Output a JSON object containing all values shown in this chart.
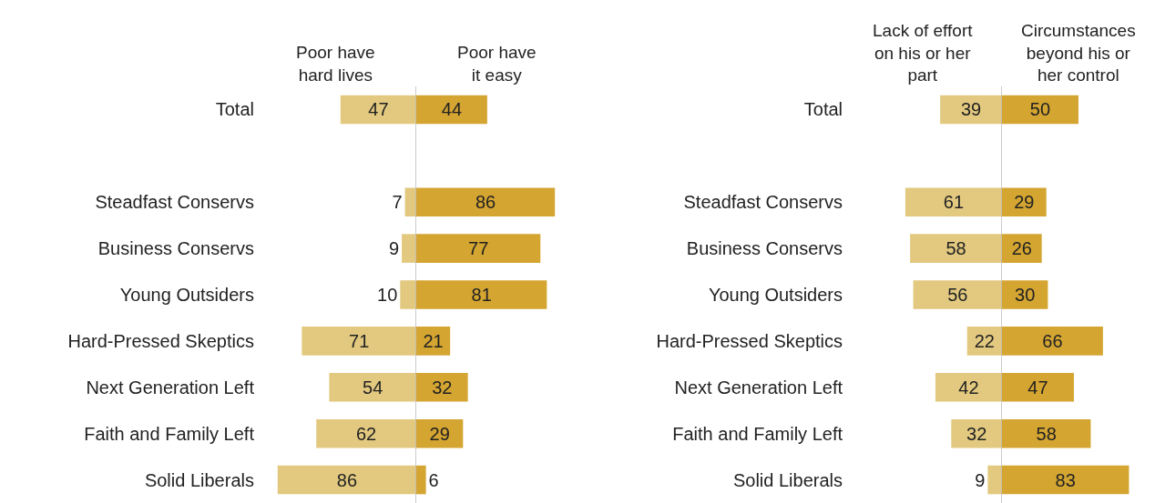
{
  "chart_data": [
    {
      "type": "bar",
      "orientation": "horizontal",
      "categories": [
        "Total",
        null,
        "Steadfast Conservs",
        "Business Conservs",
        "Young Outsiders",
        "Hard-Pressed Skeptics",
        "Next Generation Left",
        "Faith and Family Left",
        "Solid Liberals"
      ],
      "series": [
        {
          "name": "Poor have hard lives",
          "color": "#e2c97f",
          "values": [
            47,
            null,
            7,
            9,
            10,
            71,
            54,
            62,
            86
          ]
        }
      ],
      "data_labels": true,
      "tick_labels": "y",
      "legend": false,
      "ref_lines": [
        {
          "axis": "x",
          "value": 0,
          "color": "#bbbbbb"
        }
      ]
    },
    {
      "type": "bar",
      "orientation": "horizontal",
      "categories": [
        "Total",
        null,
        "Steadfast Conservs",
        "Business Conservs",
        "Young Outsiders",
        "Hard-Pressed Skeptics",
        "Next Generation Left",
        "Faith and Family Left",
        "Solid Liberals"
      ],
      "series": [
        {
          "name": "Poor have it easy",
          "color": "#d4a531",
          "values": [
            44,
            null,
            86,
            77,
            81,
            21,
            32,
            29,
            6
          ]
        }
      ],
      "data_labels": true,
      "tick_labels": false,
      "legend": false
    },
    {
      "type": "bar",
      "orientation": "horizontal",
      "categories": [
        "Total",
        null,
        "Steadfast Conservs",
        "Business Conservs",
        "Young Outsiders",
        "Hard-Pressed Skeptics",
        "Next Generation Left",
        "Faith and Family Left",
        "Solid Liberals"
      ],
      "series": [
        {
          "name": "Lack of effort on his or her part",
          "color": "#e2c97f",
          "values": [
            39,
            null,
            61,
            58,
            56,
            22,
            42,
            32,
            9
          ]
        }
      ],
      "data_labels": true,
      "tick_labels": "y",
      "legend": false,
      "ref_lines": [
        {
          "axis": "x",
          "value": 0,
          "color": "#bbbbbb"
        }
      ]
    },
    {
      "type": "bar",
      "orientation": "horizontal",
      "categories": [
        "Total",
        null,
        "Steadfast Conservs",
        "Business Conservs",
        "Young Outsiders",
        "Hard-Pressed Skeptics",
        "Next Generation Left",
        "Faith and Family Left",
        "Solid Liberals"
      ],
      "series": [
        {
          "name": "Circumstances beyond his or her control",
          "color": "#d4a531",
          "values": [
            50,
            null,
            29,
            26,
            30,
            66,
            47,
            58,
            83
          ]
        }
      ],
      "data_labels": true,
      "tick_labels": false,
      "legend": false
    }
  ]
}
